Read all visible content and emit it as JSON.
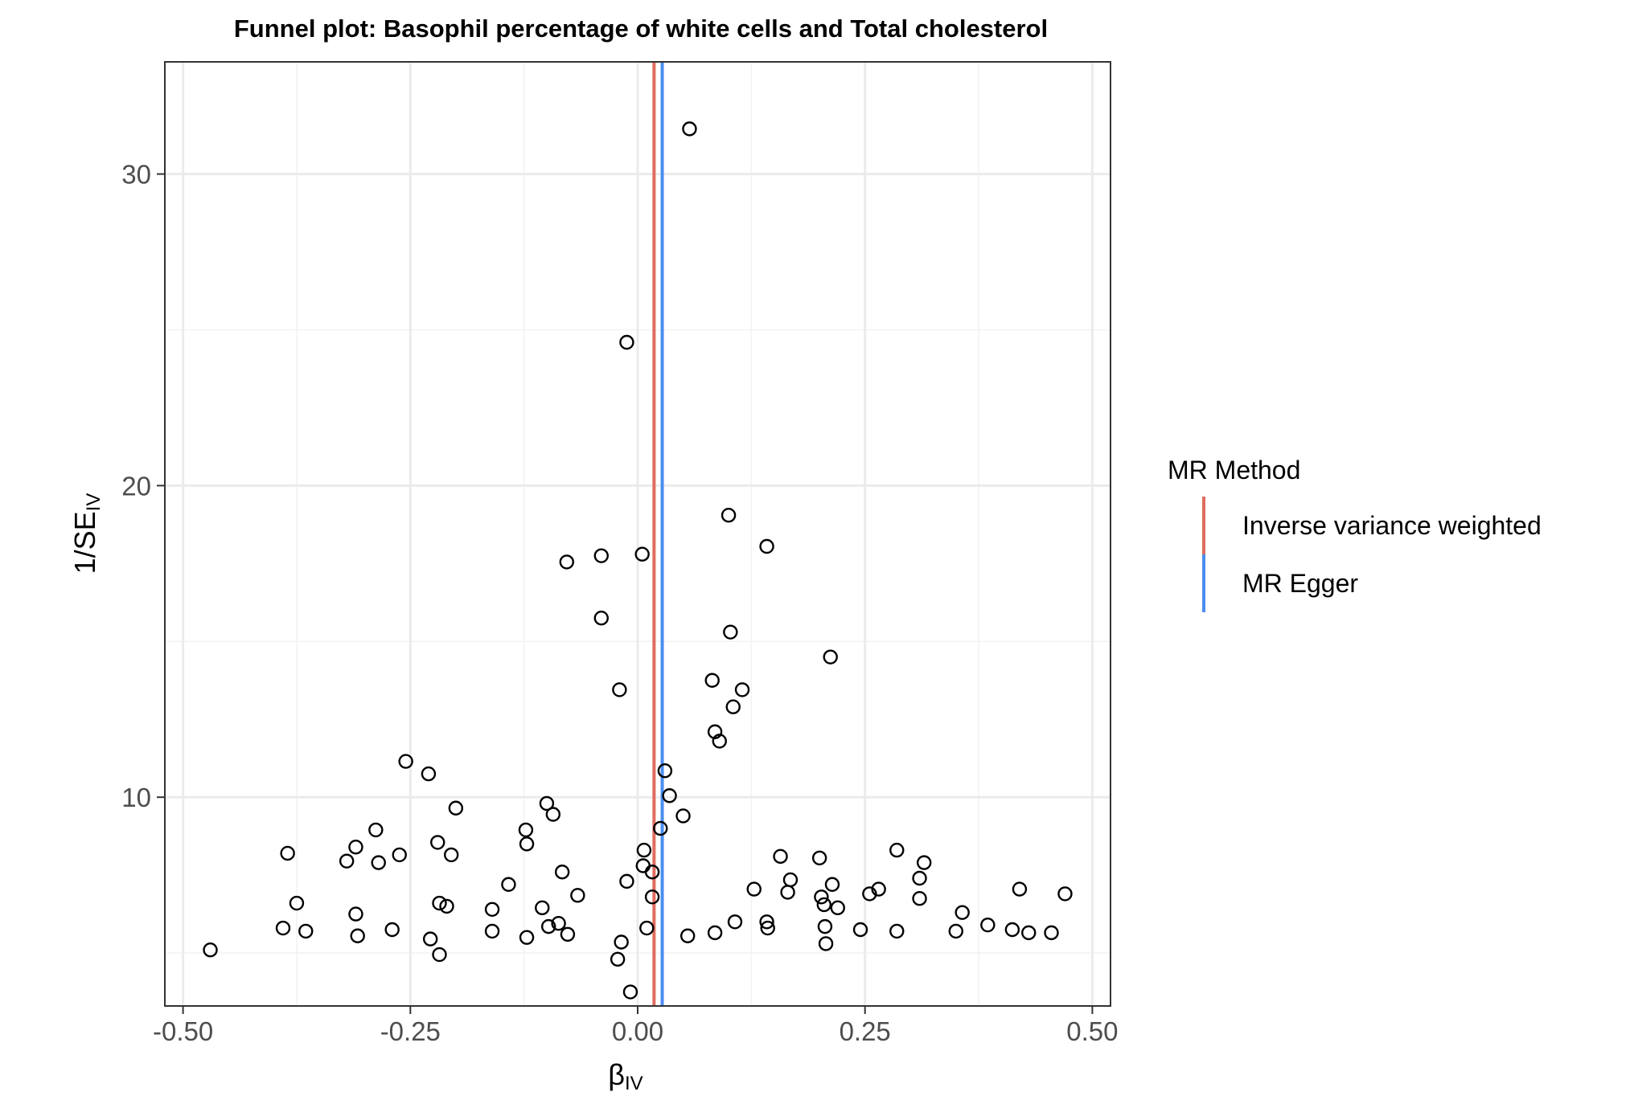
{
  "chart_data": {
    "type": "scatter",
    "title": "Funnel plot: Basophil percentage of white cells and Total cholesterol",
    "xlabel": {
      "main": "β",
      "sub": "IV"
    },
    "ylabel": {
      "main": "1/SE",
      "sub": "IV"
    },
    "xlim": [
      -0.52,
      0.52
    ],
    "ylim": [
      3.3,
      33.6
    ],
    "x_ticks": [
      -0.5,
      -0.25,
      0,
      0.25,
      0.5
    ],
    "x_tick_labels": [
      "-0.50",
      "-0.25",
      "0.00",
      "0.25",
      "0.50"
    ],
    "y_ticks": [
      10,
      20,
      30
    ],
    "y_tick_labels": [
      "10",
      "20",
      "30"
    ],
    "grid": true,
    "legend": {
      "title": "MR Method",
      "position": "right",
      "entries": [
        {
          "label": "Inverse variance weighted",
          "color": "#e06c5f"
        },
        {
          "label": "MR Egger",
          "color": "#4a8df0"
        }
      ]
    },
    "vlines": [
      {
        "method": "Inverse variance weighted",
        "x": 0.018,
        "color": "#e06c5f"
      },
      {
        "method": "MR Egger",
        "x": 0.027,
        "color": "#4a8df0"
      }
    ],
    "points": [
      [
        -0.47,
        5.1
      ],
      [
        -0.385,
        8.2
      ],
      [
        -0.39,
        5.8
      ],
      [
        -0.375,
        6.6
      ],
      [
        -0.365,
        5.7
      ],
      [
        -0.32,
        7.95
      ],
      [
        -0.31,
        8.4
      ],
      [
        -0.31,
        6.25
      ],
      [
        -0.308,
        5.55
      ],
      [
        -0.288,
        8.95
      ],
      [
        -0.285,
        7.9
      ],
      [
        -0.27,
        5.75
      ],
      [
        -0.262,
        8.15
      ],
      [
        -0.255,
        11.15
      ],
      [
        -0.23,
        10.75
      ],
      [
        -0.228,
        5.45
      ],
      [
        -0.22,
        8.55
      ],
      [
        -0.218,
        6.6
      ],
      [
        -0.218,
        4.95
      ],
      [
        -0.21,
        6.5
      ],
      [
        -0.205,
        8.15
      ],
      [
        -0.2,
        9.65
      ],
      [
        -0.16,
        6.4
      ],
      [
        -0.16,
        5.7
      ],
      [
        -0.142,
        7.2
      ],
      [
        -0.123,
        8.95
      ],
      [
        -0.122,
        8.5
      ],
      [
        -0.122,
        5.5
      ],
      [
        -0.105,
        6.45
      ],
      [
        -0.1,
        9.8
      ],
      [
        -0.098,
        5.85
      ],
      [
        -0.093,
        9.45
      ],
      [
        -0.087,
        5.95
      ],
      [
        -0.083,
        7.6
      ],
      [
        -0.077,
        5.6
      ],
      [
        -0.078,
        17.55
      ],
      [
        -0.066,
        6.85
      ],
      [
        -0.04,
        17.75
      ],
      [
        -0.04,
        15.75
      ],
      [
        -0.022,
        4.8
      ],
      [
        -0.02,
        13.45
      ],
      [
        -0.018,
        5.35
      ],
      [
        -0.012,
        7.3
      ],
      [
        -0.012,
        24.6
      ],
      [
        -0.008,
        3.75
      ],
      [
        0.005,
        17.8
      ],
      [
        0.006,
        7.8
      ],
      [
        0.007,
        8.3
      ],
      [
        0.01,
        5.8
      ],
      [
        0.016,
        6.8
      ],
      [
        0.016,
        7.6
      ],
      [
        0.025,
        9.0
      ],
      [
        0.03,
        10.85
      ],
      [
        0.035,
        10.05
      ],
      [
        0.05,
        9.4
      ],
      [
        0.055,
        5.55
      ],
      [
        0.057,
        31.45
      ],
      [
        0.082,
        13.75
      ],
      [
        0.085,
        12.1
      ],
      [
        0.085,
        5.65
      ],
      [
        0.09,
        11.8
      ],
      [
        0.1,
        19.05
      ],
      [
        0.102,
        15.3
      ],
      [
        0.105,
        12.9
      ],
      [
        0.107,
        6.0
      ],
      [
        0.115,
        13.45
      ],
      [
        0.128,
        7.05
      ],
      [
        0.142,
        18.05
      ],
      [
        0.142,
        6.0
      ],
      [
        0.143,
        5.8
      ],
      [
        0.157,
        8.1
      ],
      [
        0.165,
        6.95
      ],
      [
        0.168,
        7.35
      ],
      [
        0.2,
        8.05
      ],
      [
        0.202,
        6.8
      ],
      [
        0.205,
        6.55
      ],
      [
        0.206,
        5.85
      ],
      [
        0.207,
        5.3
      ],
      [
        0.212,
        14.5
      ],
      [
        0.214,
        7.2
      ],
      [
        0.22,
        6.45
      ],
      [
        0.245,
        5.75
      ],
      [
        0.255,
        6.9
      ],
      [
        0.265,
        7.05
      ],
      [
        0.285,
        8.3
      ],
      [
        0.285,
        5.7
      ],
      [
        0.31,
        7.4
      ],
      [
        0.31,
        6.75
      ],
      [
        0.315,
        7.9
      ],
      [
        0.35,
        5.7
      ],
      [
        0.357,
        6.3
      ],
      [
        0.385,
        5.9
      ],
      [
        0.412,
        5.75
      ],
      [
        0.42,
        7.05
      ],
      [
        0.43,
        5.65
      ],
      [
        0.455,
        5.65
      ],
      [
        0.47,
        6.9
      ]
    ]
  }
}
